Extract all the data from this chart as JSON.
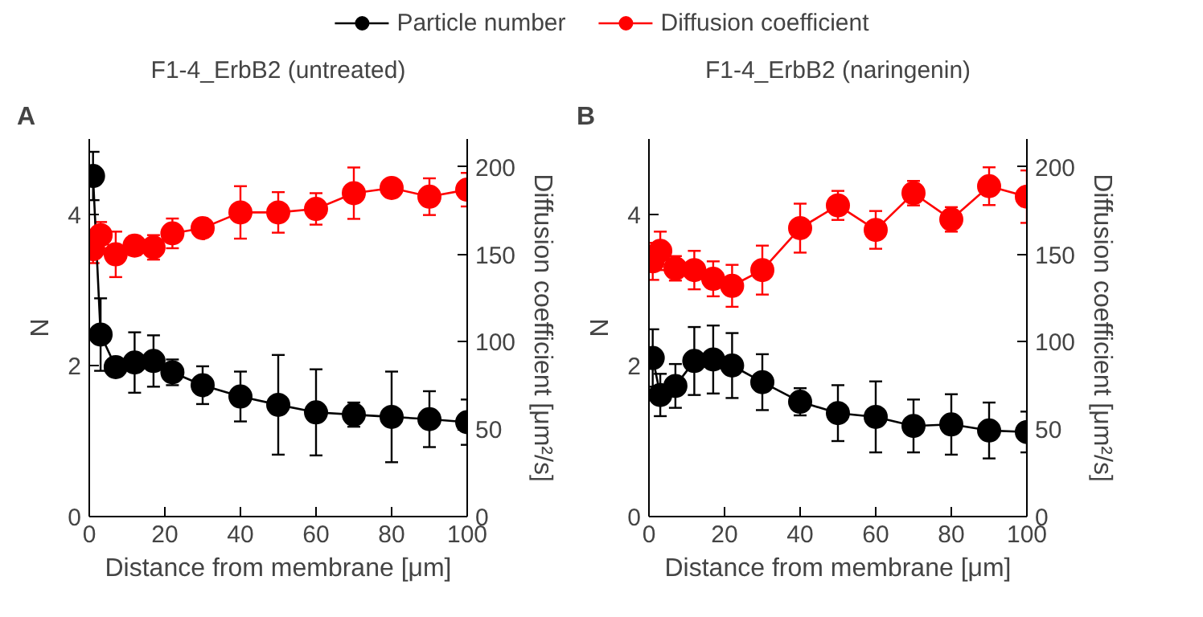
{
  "chart_data": [
    {
      "type": "line",
      "title": "F1-4_ErbB2 (untreated)",
      "annotations": [
        "A"
      ],
      "xlabel": "Distance from membrane [μm]",
      "ylabel": "N",
      "y2label": "Diffusion coefficient [μm²/s]",
      "x": [
        1,
        3,
        7,
        12,
        17,
        22,
        30,
        40,
        50,
        60,
        70,
        80,
        90,
        100
      ],
      "series": [
        {
          "name": "Particle number",
          "color": "#000000",
          "values": [
            4.51,
            2.41,
            1.98,
            2.04,
            2.06,
            1.91,
            1.74,
            1.59,
            1.48,
            1.38,
            1.35,
            1.32,
            1.29,
            1.25
          ],
          "errors": [
            0.32,
            0.48,
            null,
            0.4,
            0.34,
            0.17,
            0.25,
            0.33,
            0.66,
            0.57,
            0.16,
            0.6,
            0.37,
            0.3
          ]
        },
        {
          "name": "Diffusion coefficient",
          "color": "#ff0000",
          "axis": "y2",
          "values": [
            153,
            161,
            150,
            155,
            154,
            162,
            165,
            174,
            174,
            176,
            185,
            188,
            183,
            187
          ],
          "errors": [
            8,
            7.5,
            13,
            5.5,
            7,
            8.5,
            null,
            15,
            11.6,
            9,
            14.7,
            5.4,
            10.5,
            9.6
          ]
        }
      ],
      "xlim": [
        0,
        100
      ],
      "xticks": [
        0,
        20,
        40,
        60,
        80,
        100
      ],
      "ylim": [
        0,
        5
      ],
      "yticks": [
        0,
        2,
        4
      ],
      "y2lim": [
        0,
        216
      ],
      "y2ticks": [
        0,
        50,
        100,
        150,
        200
      ],
      "marker": "circle",
      "grid": false,
      "legend": "top"
    },
    {
      "type": "line",
      "title": "F1-4_ErbB2 (naringenin)",
      "annotations": [
        "B"
      ],
      "xlabel": "Distance from membrane [μm]",
      "ylabel": "N",
      "y2label": "Diffusion coefficient [μm²/s]",
      "x": [
        1,
        3,
        7,
        12,
        17,
        22,
        30,
        40,
        50,
        60,
        70,
        80,
        90,
        100
      ],
      "series": [
        {
          "color": "#000000",
          "values": [
            2.1,
            1.61,
            1.73,
            2.06,
            2.08,
            2.0,
            1.78,
            1.52,
            1.37,
            1.32,
            1.2,
            1.22,
            1.14,
            1.12
          ],
          "errors": [
            0.38,
            0.28,
            0.29,
            0.45,
            0.45,
            0.43,
            0.37,
            0.18,
            0.37,
            0.47,
            0.35,
            0.4,
            0.37,
            0.27
          ]
        },
        {
          "color": "#ff0000",
          "axis": "y2",
          "values": [
            146,
            152,
            142,
            141,
            136,
            132,
            141,
            165,
            178,
            164,
            185,
            170,
            189,
            183
          ],
          "errors": [
            10.6,
            11,
            7,
            11,
            10,
            12,
            14,
            14,
            8.3,
            10.8,
            7,
            7,
            10.8,
            15
          ]
        }
      ],
      "xlim": [
        0,
        100
      ],
      "xticks": [
        0,
        20,
        40,
        60,
        80,
        100
      ],
      "ylim": [
        0,
        5
      ],
      "yticks": [
        0,
        2,
        4
      ],
      "y2lim": [
        0,
        216
      ],
      "y2ticks": [
        0,
        50,
        100,
        150,
        200
      ],
      "marker": "circle",
      "grid": false
    }
  ]
}
